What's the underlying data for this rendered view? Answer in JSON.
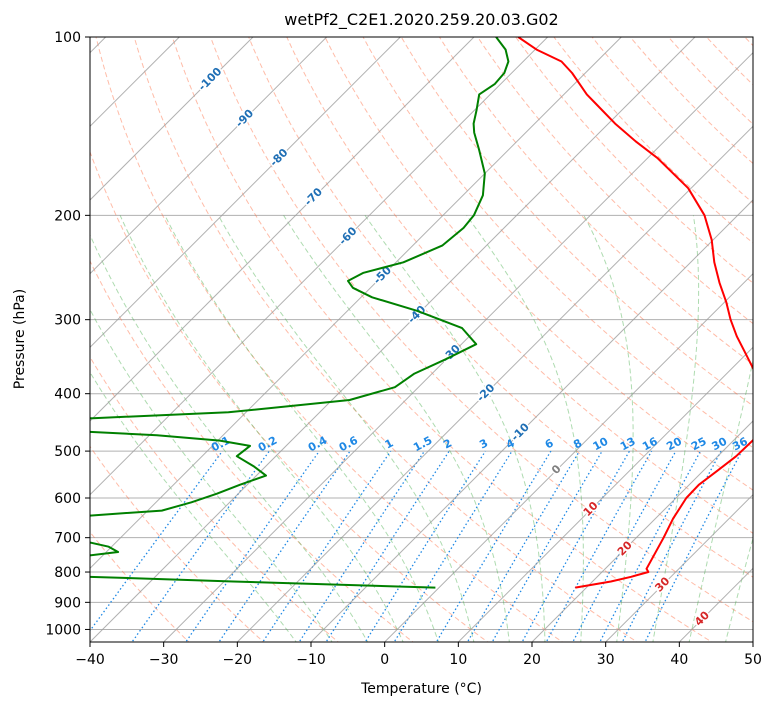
{
  "chart_data": {
    "type": "line",
    "title": "wetPf2_C2E1.2020.259.20.03.G02",
    "xlabel": "Temperature (°C)",
    "ylabel": "Pressure (hPa)",
    "xlim": [
      -40,
      50
    ],
    "ylim": [
      1050,
      100
    ],
    "y_scale": "log",
    "skew_deg": 45,
    "grid": true,
    "x_ticks": [
      -40,
      -30,
      -20,
      -10,
      0,
      10,
      20,
      30,
      40,
      50
    ],
    "y_ticks": [
      100,
      200,
      300,
      400,
      500,
      600,
      700,
      800,
      900,
      1000
    ],
    "x_tick_labels": [
      "−40",
      "−30",
      "−20",
      "−10",
      "0",
      "10",
      "20",
      "30",
      "40",
      "50"
    ],
    "y_tick_labels": [
      "100",
      "200",
      "300",
      "400",
      "500",
      "600",
      "700",
      "800",
      "900",
      "1000"
    ],
    "colors": {
      "temperature": "#ff0000",
      "dewpoint": "#008000",
      "dry_adiabat": "#ff6a3d",
      "moist_adiabat": "#4caf50",
      "mixing_ratio": "#1e88e5",
      "isotherm": "#808080",
      "isotherm_label_cold": "#1f6fb5",
      "isotherm_label_warm": "#d62728",
      "isotherm_label_zero": "#808080"
    },
    "isotherm_labels": [
      {
        "t": -100,
        "label": "-100"
      },
      {
        "t": -90,
        "label": "-90"
      },
      {
        "t": -80,
        "label": "-80"
      },
      {
        "t": -70,
        "label": "-70"
      },
      {
        "t": -60,
        "label": "-60"
      },
      {
        "t": -50,
        "label": "-50"
      },
      {
        "t": -40,
        "label": "-40"
      },
      {
        "t": -30,
        "label": "-30"
      },
      {
        "t": -20,
        "label": "-20"
      },
      {
        "t": -10,
        "label": "-10"
      },
      {
        "t": 0,
        "label": "0"
      },
      {
        "t": 10,
        "label": "10"
      },
      {
        "t": 20,
        "label": "20"
      },
      {
        "t": 30,
        "label": "30"
      },
      {
        "t": 40,
        "label": "40"
      }
    ],
    "mixing_ratio_labels": [
      "0.1",
      "0.2",
      "0.4",
      "0.6",
      "1",
      "1.5",
      "2",
      "3",
      "4",
      "6",
      "8",
      "10",
      "13",
      "16",
      "20",
      "25",
      "30",
      "36"
    ],
    "mixing_ratio_values": [
      0.1,
      0.2,
      0.4,
      0.6,
      1,
      1.5,
      2,
      3,
      4,
      6,
      8,
      10,
      13,
      16,
      20,
      25,
      30,
      36
    ],
    "series": [
      {
        "name": "Temperature",
        "color": "#ff0000",
        "points": [
          [
            850,
            18.5
          ],
          [
            830,
            22.5
          ],
          [
            815,
            24.6
          ],
          [
            800,
            26.3
          ],
          [
            790,
            25.6
          ],
          [
            760,
            25.0
          ],
          [
            700,
            23.7
          ],
          [
            650,
            22.4
          ],
          [
            600,
            21.4
          ],
          [
            570,
            21.3
          ],
          [
            540,
            21.9
          ],
          [
            510,
            22.5
          ],
          [
            480,
            22.6
          ],
          [
            460,
            22.5
          ],
          [
            440,
            21.6
          ],
          [
            420,
            20.0
          ],
          [
            400,
            17.6
          ],
          [
            380,
            15.3
          ],
          [
            360,
            12.5
          ],
          [
            340,
            9.5
          ],
          [
            320,
            6.3
          ],
          [
            300,
            3.2
          ],
          [
            280,
            0.2
          ],
          [
            260,
            -3.3
          ],
          [
            240,
            -6.8
          ],
          [
            220,
            -10.2
          ],
          [
            200,
            -14.5
          ],
          [
            180,
            -20.4
          ],
          [
            160,
            -28.7
          ],
          [
            150,
            -33.9
          ],
          [
            140,
            -39.1
          ],
          [
            130,
            -44.2
          ],
          [
            125,
            -46.9
          ],
          [
            120,
            -49.3
          ],
          [
            115,
            -51.8
          ],
          [
            110,
            -54.8
          ],
          [
            105,
            -59.8
          ],
          [
            100,
            -64.0
          ]
        ]
      },
      {
        "name": "Dewpoint",
        "color": "#008000",
        "points": [
          [
            850,
            -0.5
          ],
          [
            830,
            -28.8
          ],
          [
            815,
            -48.9
          ],
          [
            810,
            -56.8
          ],
          [
            790,
            -62.8
          ],
          [
            770,
            -58.5
          ],
          [
            740,
            -48.4
          ],
          [
            725,
            -50.4
          ],
          [
            700,
            -57.1
          ],
          [
            680,
            -57.8
          ],
          [
            670,
            -60.9
          ],
          [
            660,
            -63.8
          ],
          [
            650,
            -62.2
          ],
          [
            640,
            -55.4
          ],
          [
            630,
            -48.1
          ],
          [
            610,
            -45.2
          ],
          [
            590,
            -42.9
          ],
          [
            570,
            -41.0
          ],
          [
            550,
            -38.7
          ],
          [
            530,
            -41.7
          ],
          [
            510,
            -45.3
          ],
          [
            490,
            -44.9
          ],
          [
            480,
            -49.7
          ],
          [
            470,
            -59.0
          ],
          [
            460,
            -75.0
          ],
          [
            445,
            -86.0
          ],
          [
            440,
            -70.0
          ],
          [
            430,
            -52.4
          ],
          [
            410,
            -37.6
          ],
          [
            390,
            -33.2
          ],
          [
            370,
            -32.4
          ],
          [
            350,
            -30.1
          ],
          [
            330,
            -28.0
          ],
          [
            310,
            -32.1
          ],
          [
            290,
            -40.5
          ],
          [
            275,
            -48.5
          ],
          [
            265,
            -52.4
          ],
          [
            258,
            -54.0
          ],
          [
            250,
            -53.0
          ],
          [
            240,
            -49.0
          ],
          [
            225,
            -46.0
          ],
          [
            210,
            -45.5
          ],
          [
            200,
            -45.8
          ],
          [
            185,
            -47.3
          ],
          [
            170,
            -50.0
          ],
          [
            155,
            -54.0
          ],
          [
            145,
            -57.0
          ],
          [
            140,
            -58.3
          ],
          [
            133,
            -59.7
          ],
          [
            125,
            -61.5
          ],
          [
            120,
            -60.8
          ],
          [
            115,
            -61.0
          ],
          [
            110,
            -62.0
          ],
          [
            105,
            -64.0
          ],
          [
            100,
            -67.0
          ]
        ]
      }
    ]
  }
}
